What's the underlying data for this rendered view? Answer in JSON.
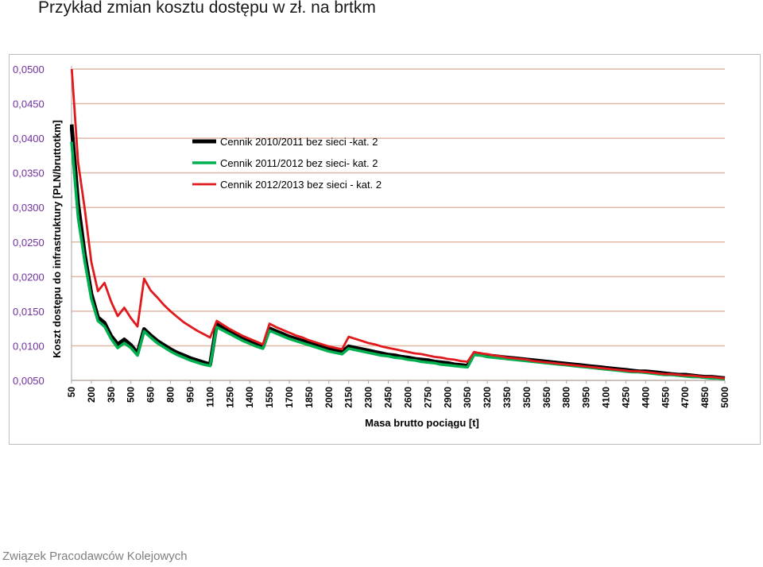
{
  "slide_title": "Przykład zmian kosztu dostępu w zł. na brtkm",
  "footer": "Związek Pracodawców Kolejowych",
  "chart_data": {
    "type": "line",
    "xlabel": "Masa brutto pociągu [t]",
    "ylabel": "Koszt dostępu do infrastruktury [PLN/bruttotkm]",
    "ylim": [
      0.005,
      0.05
    ],
    "yticks": [
      "0,0500",
      "0,0450",
      "0,0400",
      "0,0350",
      "0,0300",
      "0,0250",
      "0,0200",
      "0,0150",
      "0,0100",
      "0,0050"
    ],
    "ytick_values": [
      0.05,
      0.045,
      0.04,
      0.035,
      0.03,
      0.025,
      0.02,
      0.015,
      0.01,
      0.005
    ],
    "grid": true,
    "legend_position": "top-center",
    "x": [
      50,
      100,
      150,
      200,
      250,
      300,
      350,
      400,
      450,
      500,
      550,
      600,
      650,
      700,
      750,
      800,
      850,
      900,
      950,
      1000,
      1050,
      1100,
      1150,
      1200,
      1250,
      1300,
      1350,
      1400,
      1450,
      1500,
      1550,
      1600,
      1650,
      1700,
      1750,
      1800,
      1850,
      1900,
      1950,
      2000,
      2050,
      2100,
      2150,
      2200,
      2250,
      2300,
      2350,
      2400,
      2450,
      2500,
      2550,
      2600,
      2650,
      2700,
      2750,
      2800,
      2850,
      2900,
      2950,
      3000,
      3050,
      3100,
      3150,
      3200,
      3250,
      3300,
      3350,
      3400,
      3450,
      3500,
      3550,
      3600,
      3650,
      3700,
      3750,
      3800,
      3850,
      3900,
      3950,
      4000,
      4050,
      4100,
      4150,
      4200,
      4250,
      4300,
      4350,
      4400,
      4450,
      4500,
      4550,
      4600,
      4650,
      4700,
      4750,
      4800,
      4850,
      4900,
      4950,
      5000
    ],
    "xticks": [
      "50",
      "200",
      "350",
      "500",
      "650",
      "800",
      "950",
      "1100",
      "1250",
      "1400",
      "1550",
      "1700",
      "1850",
      "2000",
      "2150",
      "2300",
      "2450",
      "2600",
      "2750",
      "2900",
      "3050",
      "3200",
      "3350",
      "3500",
      "3650",
      "3800",
      "3950",
      "4100",
      "4250",
      "4400",
      "4550",
      "4700",
      "4850",
      "5000"
    ],
    "series": [
      {
        "name": "Cennik 2010/2011 bez sieci -kat. 2",
        "color": "#000000",
        "values": [
          0.042,
          0.0305,
          0.0232,
          0.0175,
          0.0141,
          0.0133,
          0.0114,
          0.0102,
          0.0109,
          0.0101,
          0.0089,
          0.0124,
          0.0115,
          0.0107,
          0.0101,
          0.0095,
          0.009,
          0.0086,
          0.0082,
          0.0079,
          0.0076,
          0.0073,
          0.0131,
          0.0125,
          0.012,
          0.0115,
          0.011,
          0.0106,
          0.0102,
          0.0098,
          0.0125,
          0.0121,
          0.0117,
          0.0113,
          0.011,
          0.0107,
          0.0104,
          0.0101,
          0.0098,
          0.0095,
          0.0093,
          0.0091,
          0.0099,
          0.0097,
          0.0095,
          0.0093,
          0.0091,
          0.0089,
          0.0087,
          0.0086,
          0.0084,
          0.0083,
          0.0081,
          0.008,
          0.0079,
          0.0077,
          0.0076,
          0.0075,
          0.0073,
          0.0072,
          0.0071,
          0.0089,
          0.0088,
          0.0086,
          0.0085,
          0.0084,
          0.0083,
          0.0082,
          0.0081,
          0.008,
          0.0079,
          0.0078,
          0.0077,
          0.0076,
          0.0075,
          0.0074,
          0.0073,
          0.0072,
          0.0071,
          0.007,
          0.0069,
          0.0068,
          0.0067,
          0.0066,
          0.0065,
          0.0064,
          0.0063,
          0.0063,
          0.0062,
          0.0061,
          0.006,
          0.0059,
          0.0058,
          0.0058,
          0.0057,
          0.0056,
          0.0055,
          0.0055,
          0.0054,
          0.0053
        ]
      },
      {
        "name": "Cennik 2011/2012 bez sieci- kat. 2",
        "color": "#00b050",
        "values": [
          0.0395,
          0.0285,
          0.0222,
          0.0168,
          0.0136,
          0.0128,
          0.011,
          0.0097,
          0.0104,
          0.0097,
          0.0086,
          0.0121,
          0.0112,
          0.0104,
          0.0098,
          0.0092,
          0.0087,
          0.0083,
          0.0079,
          0.0076,
          0.0073,
          0.0071,
          0.0127,
          0.0122,
          0.0117,
          0.0112,
          0.0107,
          0.0103,
          0.0099,
          0.0096,
          0.0122,
          0.0118,
          0.0114,
          0.011,
          0.0107,
          0.0104,
          0.0101,
          0.0098,
          0.0095,
          0.0092,
          0.009,
          0.0088,
          0.0096,
          0.0094,
          0.0092,
          0.009,
          0.0088,
          0.0086,
          0.0085,
          0.0083,
          0.0082,
          0.008,
          0.0079,
          0.0077,
          0.0076,
          0.0075,
          0.0073,
          0.0072,
          0.0071,
          0.007,
          0.0069,
          0.0087,
          0.0086,
          0.0084,
          0.0083,
          0.0082,
          0.0081,
          0.008,
          0.0079,
          0.0078,
          0.0077,
          0.0076,
          0.0075,
          0.0074,
          0.0073,
          0.0072,
          0.0071,
          0.007,
          0.0069,
          0.0068,
          0.0067,
          0.0066,
          0.0065,
          0.0064,
          0.0063,
          0.0062,
          0.0062,
          0.0061,
          0.006,
          0.0059,
          0.0058,
          0.0058,
          0.0057,
          0.0056,
          0.0055,
          0.0055,
          0.0054,
          0.0053,
          0.0053,
          0.0052
        ]
      },
      {
        "name": "Cennik 2012/2013 bez sieci - kat. 2",
        "color": "#e0191c",
        "values": [
          0.0505,
          0.0365,
          0.0298,
          0.0221,
          0.0179,
          0.0191,
          0.0164,
          0.0143,
          0.0155,
          0.014,
          0.0128,
          0.0197,
          0.018,
          0.017,
          0.0159,
          0.015,
          0.0142,
          0.0134,
          0.0128,
          0.0122,
          0.0117,
          0.0112,
          0.0136,
          0.013,
          0.0124,
          0.0119,
          0.0114,
          0.011,
          0.0106,
          0.0102,
          0.0132,
          0.0127,
          0.0123,
          0.0119,
          0.0115,
          0.0112,
          0.0108,
          0.0105,
          0.0102,
          0.0099,
          0.0097,
          0.0095,
          0.0113,
          0.011,
          0.0107,
          0.0104,
          0.0102,
          0.0099,
          0.0097,
          0.0095,
          0.0093,
          0.0091,
          0.0089,
          0.0088,
          0.0086,
          0.0084,
          0.0083,
          0.0081,
          0.008,
          0.0078,
          0.0077,
          0.0091,
          0.0089,
          0.0088,
          0.0086,
          0.0085,
          0.0083,
          0.0082,
          0.0081,
          0.008,
          0.0078,
          0.0077,
          0.0076,
          0.0075,
          0.0074,
          0.0073,
          0.0072,
          0.0071,
          0.007,
          0.0069,
          0.0068,
          0.0067,
          0.0066,
          0.0065,
          0.0064,
          0.0063,
          0.0063,
          0.0062,
          0.0061,
          0.006,
          0.0059,
          0.0059,
          0.0058,
          0.0057,
          0.0057,
          0.0056,
          0.0055,
          0.0055,
          0.0054,
          0.0053
        ]
      }
    ]
  }
}
